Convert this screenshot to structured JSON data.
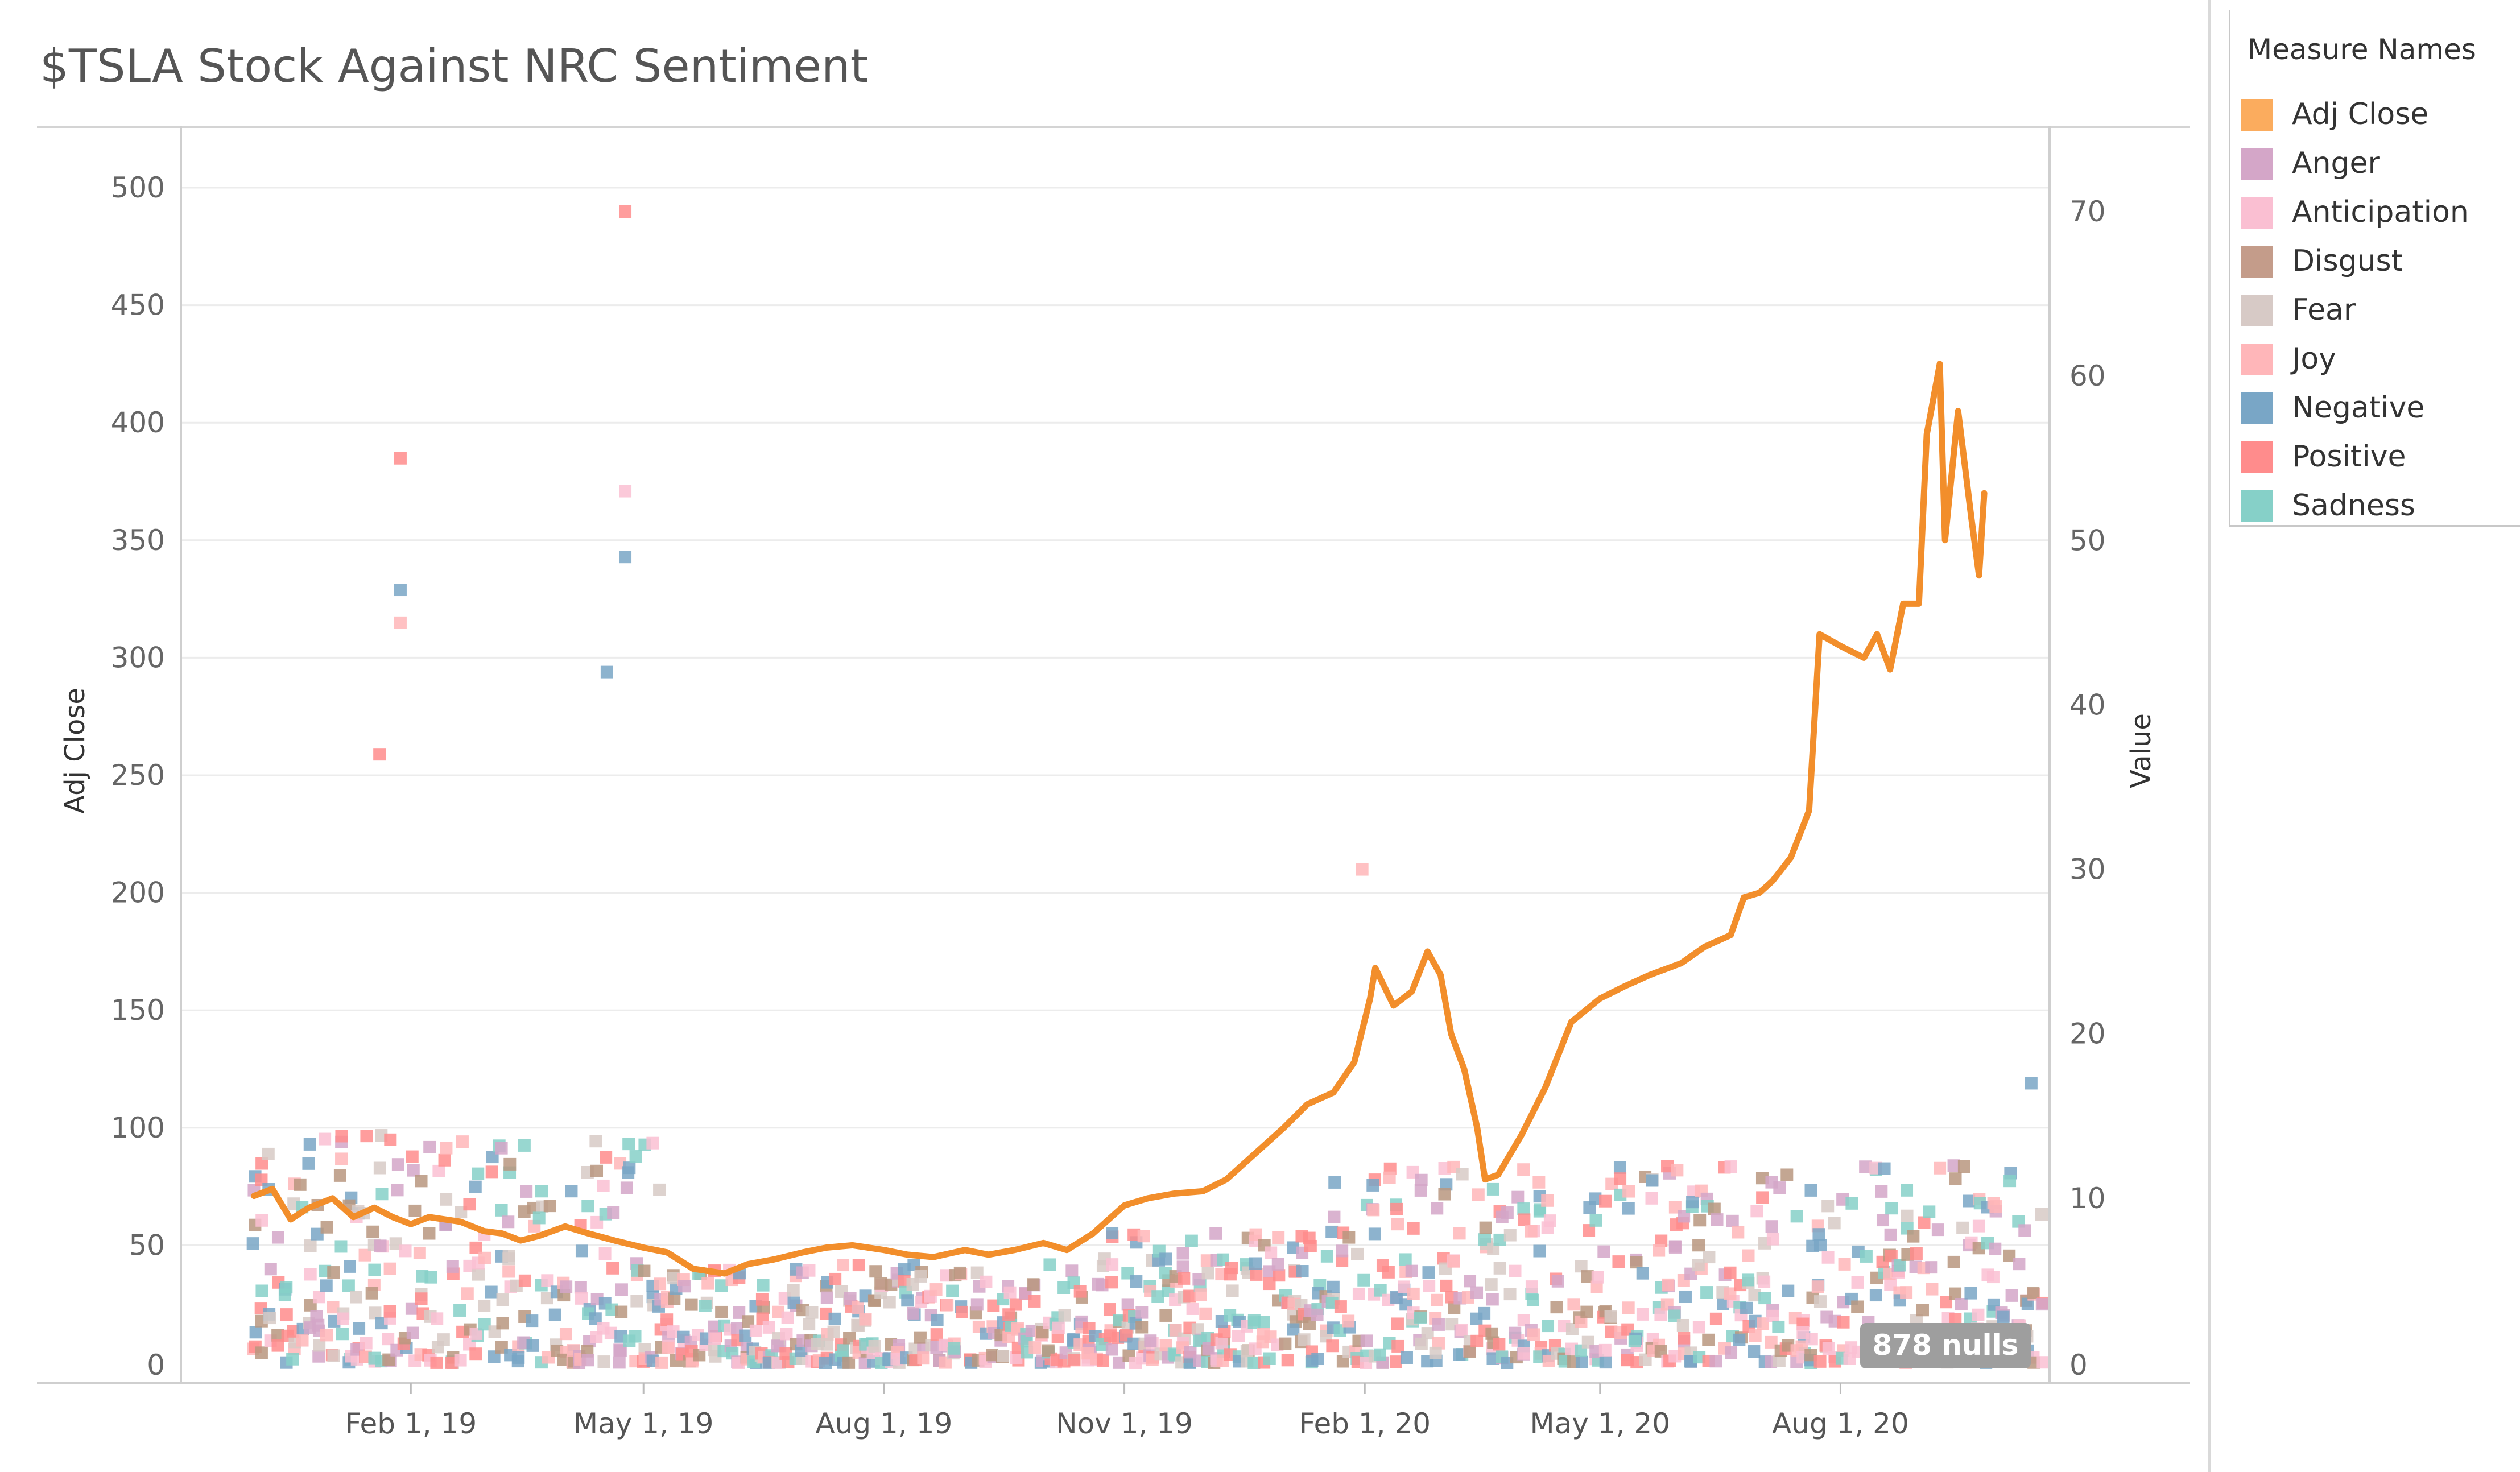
{
  "chart_data": {
    "type": "line",
    "title": "$TSLA Stock Against NRC Sentiment",
    "y_left_label": "Adj Close",
    "y_right_label": "Value",
    "y_left_ticks": [
      0,
      50,
      100,
      150,
      200,
      250,
      300,
      350,
      400,
      450,
      500
    ],
    "y_right_ticks": [
      0,
      10,
      20,
      30,
      40,
      50,
      60,
      70
    ],
    "y_left_range": [
      -8,
      500
    ],
    "y_right_range": [
      0,
      70
    ],
    "x_ticks": [
      "Feb 1, 19",
      "May 1, 19",
      "Aug 1, 19",
      "Nov 1, 19",
      "Feb 1, 20",
      "May 1, 20",
      "Aug 1, 20"
    ],
    "x_range": [
      "2018-11-05",
      "2020-10-20"
    ],
    "nulls_badge": "878 nulls",
    "legend_title": "Measure Names",
    "grid": true,
    "legend_position": "top-right",
    "series": [
      {
        "name": "Adj Close",
        "axis": "left",
        "kind": "line",
        "color": "#f28e2b",
        "x": [
          "2018-12-03",
          "2018-12-10",
          "2018-12-17",
          "2018-12-24",
          "2019-01-02",
          "2019-01-10",
          "2019-01-18",
          "2019-01-25",
          "2019-02-01",
          "2019-02-08",
          "2019-02-20",
          "2019-03-01",
          "2019-03-08",
          "2019-03-15",
          "2019-03-22",
          "2019-04-01",
          "2019-04-10",
          "2019-04-20",
          "2019-05-01",
          "2019-05-10",
          "2019-05-20",
          "2019-06-01",
          "2019-06-10",
          "2019-06-20",
          "2019-07-01",
          "2019-07-10",
          "2019-07-20",
          "2019-08-01",
          "2019-08-10",
          "2019-08-20",
          "2019-09-01",
          "2019-09-10",
          "2019-09-20",
          "2019-10-01",
          "2019-10-10",
          "2019-10-20",
          "2019-10-24",
          "2019-11-01",
          "2019-11-10",
          "2019-11-20",
          "2019-12-01",
          "2019-12-10",
          "2019-12-20",
          "2020-01-01",
          "2020-01-10",
          "2020-01-20",
          "2020-01-28",
          "2020-02-03",
          "2020-02-05",
          "2020-02-12",
          "2020-02-19",
          "2020-02-25",
          "2020-03-01",
          "2020-03-05",
          "2020-03-10",
          "2020-03-15",
          "2020-03-18",
          "2020-03-23",
          "2020-04-01",
          "2020-04-10",
          "2020-04-20",
          "2020-05-01",
          "2020-05-10",
          "2020-05-20",
          "2020-06-01",
          "2020-06-10",
          "2020-06-20",
          "2020-06-25",
          "2020-07-01",
          "2020-07-06",
          "2020-07-13",
          "2020-07-20",
          "2020-07-24",
          "2020-08-01",
          "2020-08-10",
          "2020-08-15",
          "2020-08-20",
          "2020-08-25",
          "2020-08-31",
          "2020-09-03",
          "2020-09-08",
          "2020-09-10",
          "2020-09-15",
          "2020-09-20",
          "2020-09-23",
          "2020-09-25"
        ],
        "values": [
          71,
          74,
          61,
          66,
          70,
          62,
          66,
          62,
          59,
          62,
          60,
          56,
          55,
          52,
          54,
          58,
          55,
          52,
          49,
          47,
          40,
          38,
          42,
          44,
          47,
          49,
          50,
          48,
          46,
          45,
          48,
          46,
          48,
          51,
          48,
          55,
          59,
          67,
          70,
          72,
          73,
          78,
          88,
          100,
          110,
          115,
          128,
          155,
          168,
          152,
          158,
          175,
          165,
          140,
          125,
          100,
          78,
          80,
          97,
          117,
          145,
          155,
          160,
          165,
          170,
          177,
          182,
          198,
          200,
          205,
          215,
          235,
          310,
          305,
          300,
          310,
          295,
          323,
          323,
          395,
          425,
          350,
          405,
          360,
          335,
          370
        ]
      }
    ],
    "sentiment_series": [
      {
        "name": "Anger",
        "axis": "right",
        "kind": "square",
        "color": "#d4a6c8"
      },
      {
        "name": "Anticipation",
        "axis": "right",
        "kind": "square",
        "color": "#fabfd2"
      },
      {
        "name": "Disgust",
        "axis": "right",
        "kind": "square",
        "color": "#b9977f"
      },
      {
        "name": "Fear",
        "axis": "right",
        "kind": "square",
        "color": "#d7cac6"
      },
      {
        "name": "Joy",
        "axis": "right",
        "kind": "square",
        "color": "#ffb6b9"
      },
      {
        "name": "Negative",
        "axis": "right",
        "kind": "square",
        "color": "#79a6c6"
      },
      {
        "name": "Positive",
        "axis": "right",
        "kind": "square",
        "color": "#ff8c8c"
      },
      {
        "name": "Sadness",
        "axis": "right",
        "kind": "square",
        "color": "#86d0c8"
      }
    ],
    "highlight_points": [
      {
        "name": "Positive",
        "x": "2019-01-28",
        "value": 55
      },
      {
        "name": "Positive",
        "x": "2019-04-24",
        "value": 70
      },
      {
        "name": "Anticipation",
        "x": "2019-04-24",
        "value": 53
      },
      {
        "name": "Negative",
        "x": "2019-04-24",
        "value": 49
      },
      {
        "name": "Negative",
        "x": "2019-01-28",
        "value": 47
      },
      {
        "name": "Joy",
        "x": "2019-01-28",
        "value": 45
      },
      {
        "name": "Negative",
        "x": "2019-04-17",
        "value": 42
      },
      {
        "name": "Positive",
        "x": "2019-01-20",
        "value": 37
      },
      {
        "name": "Joy",
        "x": "2020-01-31",
        "value": 30
      },
      {
        "name": "Negative",
        "x": "2020-10-13",
        "value": 17
      }
    ]
  }
}
